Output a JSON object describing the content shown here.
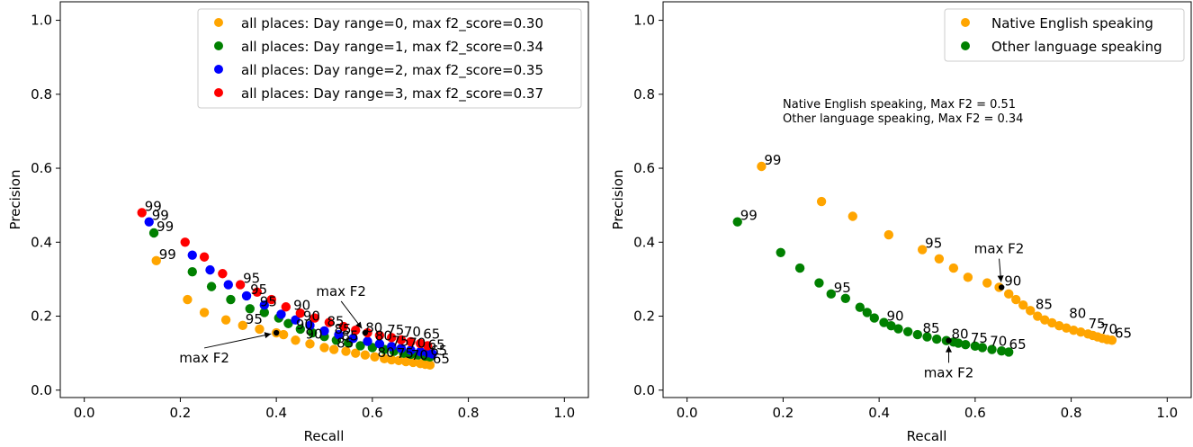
{
  "chart_data": [
    {
      "type": "scatter",
      "xlabel": "Recall",
      "ylabel": "Precision",
      "xlim": [
        -0.05,
        1.05
      ],
      "ylim": [
        -0.02,
        1.05
      ],
      "xticks": [
        "0.0",
        "0.2",
        "0.4",
        "0.6",
        "0.8",
        "1.0"
      ],
      "yticks": [
        "0.0",
        "0.2",
        "0.4",
        "0.6",
        "0.8",
        "1.0"
      ],
      "legend_position": "top-right",
      "series": [
        {
          "name": "all places: Day range=0, max f2_score=0.30",
          "color": "#ffa500",
          "x": [
            0.15,
            0.215,
            0.25,
            0.295,
            0.33,
            0.365,
            0.4,
            0.415,
            0.44,
            0.47,
            0.5,
            0.52,
            0.545,
            0.565,
            0.585,
            0.605,
            0.625,
            0.64,
            0.655,
            0.67,
            0.685,
            0.7,
            0.71,
            0.72
          ],
          "y": [
            0.35,
            0.245,
            0.21,
            0.19,
            0.175,
            0.165,
            0.155,
            0.15,
            0.135,
            0.125,
            0.115,
            0.11,
            0.105,
            0.1,
            0.095,
            0.09,
            0.085,
            0.082,
            0.08,
            0.077,
            0.075,
            0.072,
            0.07,
            0.068
          ]
        },
        {
          "name": "all places: Day range=1, max f2_score=0.34",
          "color": "#008000",
          "x": [
            0.145,
            0.225,
            0.265,
            0.305,
            0.345,
            0.375,
            0.405,
            0.425,
            0.45,
            0.475,
            0.5,
            0.525,
            0.55,
            0.575,
            0.6,
            0.625,
            0.645,
            0.665,
            0.68,
            0.695,
            0.71,
            0.72
          ],
          "y": [
            0.425,
            0.32,
            0.28,
            0.245,
            0.22,
            0.21,
            0.195,
            0.18,
            0.165,
            0.155,
            0.145,
            0.135,
            0.128,
            0.12,
            0.115,
            0.11,
            0.105,
            0.1,
            0.097,
            0.095,
            0.092,
            0.09
          ]
        },
        {
          "name": "all places: Day range=2, max f2_score=0.35",
          "color": "#0000ff",
          "x": [
            0.135,
            0.225,
            0.262,
            0.3,
            0.338,
            0.375,
            0.41,
            0.44,
            0.47,
            0.5,
            0.53,
            0.56,
            0.59,
            0.615,
            0.64,
            0.66,
            0.68,
            0.7,
            0.715,
            0.725
          ],
          "y": [
            0.455,
            0.365,
            0.325,
            0.285,
            0.255,
            0.23,
            0.205,
            0.19,
            0.175,
            0.16,
            0.15,
            0.14,
            0.132,
            0.125,
            0.118,
            0.113,
            0.108,
            0.104,
            0.101,
            0.098
          ]
        },
        {
          "name": "all places: Day range=3, max f2_score=0.37",
          "color": "#ff0000",
          "x": [
            0.12,
            0.21,
            0.25,
            0.288,
            0.325,
            0.36,
            0.39,
            0.42,
            0.45,
            0.48,
            0.51,
            0.54,
            0.565,
            0.59,
            0.615,
            0.64,
            0.66,
            0.68,
            0.7,
            0.715
          ],
          "y": [
            0.48,
            0.4,
            0.36,
            0.315,
            0.285,
            0.265,
            0.245,
            0.225,
            0.208,
            0.195,
            0.183,
            0.172,
            0.162,
            0.155,
            0.148,
            0.142,
            0.136,
            0.131,
            0.126,
            0.12
          ]
        }
      ],
      "annotations": [
        {
          "text": "99",
          "x": 0.12,
          "y": 0.48
        },
        {
          "text": "99",
          "x": 0.135,
          "y": 0.455
        },
        {
          "text": "99",
          "x": 0.145,
          "y": 0.425
        },
        {
          "text": "99",
          "x": 0.15,
          "y": 0.35
        },
        {
          "text": "95",
          "x": 0.325,
          "y": 0.285
        },
        {
          "text": "95",
          "x": 0.34,
          "y": 0.255
        },
        {
          "text": "95",
          "x": 0.36,
          "y": 0.222
        },
        {
          "text": "95",
          "x": 0.33,
          "y": 0.175
        },
        {
          "text": "90",
          "x": 0.43,
          "y": 0.212
        },
        {
          "text": "90",
          "x": 0.45,
          "y": 0.183
        },
        {
          "text": "90",
          "x": 0.435,
          "y": 0.16
        },
        {
          "text": "90",
          "x": 0.455,
          "y": 0.135
        },
        {
          "text": "85",
          "x": 0.5,
          "y": 0.168
        },
        {
          "text": "85",
          "x": 0.515,
          "y": 0.148
        },
        {
          "text": "85",
          "x": 0.53,
          "y": 0.13
        },
        {
          "text": "85",
          "x": 0.52,
          "y": 0.11
        },
        {
          "text": "80",
          "x": 0.58,
          "y": 0.152
        },
        {
          "text": "80",
          "x": 0.6,
          "y": 0.13
        },
        {
          "text": "80",
          "x": 0.605,
          "y": 0.085
        },
        {
          "text": "75",
          "x": 0.625,
          "y": 0.145
        },
        {
          "text": "75",
          "x": 0.635,
          "y": 0.115
        },
        {
          "text": "75",
          "x": 0.645,
          "y": 0.082
        },
        {
          "text": "70",
          "x": 0.66,
          "y": 0.14
        },
        {
          "text": "70",
          "x": 0.67,
          "y": 0.11
        },
        {
          "text": "70",
          "x": 0.675,
          "y": 0.077
        },
        {
          "text": "65",
          "x": 0.7,
          "y": 0.135
        },
        {
          "text": "65",
          "x": 0.71,
          "y": 0.105
        },
        {
          "text": "65",
          "x": 0.715,
          "y": 0.09
        },
        {
          "text": "65",
          "x": 0.72,
          "y": 0.068
        }
      ],
      "callouts": [
        {
          "text": "max F2",
          "point": [
            0.4,
            0.155
          ],
          "text_at": [
            0.25,
            0.075
          ]
        },
        {
          "text": "max F2",
          "point": [
            0.585,
            0.155
          ],
          "text_at": [
            0.535,
            0.255
          ]
        }
      ]
    },
    {
      "type": "scatter",
      "xlabel": "Recall",
      "ylabel": "Precision",
      "xlim": [
        -0.05,
        1.05
      ],
      "ylim": [
        -0.02,
        1.05
      ],
      "xticks": [
        "0.0",
        "0.2",
        "0.4",
        "0.6",
        "0.8",
        "1.0"
      ],
      "yticks": [
        "0.0",
        "0.2",
        "0.4",
        "0.6",
        "0.8",
        "1.0"
      ],
      "legend_position": "top-right",
      "text_box": [
        "Native English speaking, Max F2 = 0.51",
        "Other language speaking, Max F2 = 0.34"
      ],
      "series": [
        {
          "name": "Native English speaking",
          "color": "#ffa500",
          "x": [
            0.155,
            0.28,
            0.345,
            0.42,
            0.49,
            0.525,
            0.555,
            0.585,
            0.625,
            0.65,
            0.67,
            0.685,
            0.7,
            0.715,
            0.73,
            0.745,
            0.76,
            0.775,
            0.79,
            0.805,
            0.82,
            0.835,
            0.845,
            0.855,
            0.865,
            0.875,
            0.885
          ],
          "y": [
            0.605,
            0.51,
            0.47,
            0.42,
            0.38,
            0.355,
            0.33,
            0.305,
            0.29,
            0.278,
            0.26,
            0.245,
            0.23,
            0.215,
            0.2,
            0.19,
            0.182,
            0.174,
            0.168,
            0.162,
            0.157,
            0.152,
            0.148,
            0.144,
            0.14,
            0.137,
            0.135
          ]
        },
        {
          "name": "Other language speaking",
          "color": "#008000",
          "x": [
            0.105,
            0.195,
            0.235,
            0.275,
            0.3,
            0.33,
            0.36,
            0.375,
            0.39,
            0.41,
            0.425,
            0.44,
            0.46,
            0.48,
            0.5,
            0.52,
            0.54,
            0.555,
            0.565,
            0.58,
            0.6,
            0.615,
            0.635,
            0.655,
            0.67
          ],
          "y": [
            0.455,
            0.372,
            0.33,
            0.29,
            0.26,
            0.248,
            0.224,
            0.21,
            0.195,
            0.183,
            0.174,
            0.166,
            0.158,
            0.15,
            0.144,
            0.138,
            0.134,
            0.13,
            0.127,
            0.123,
            0.119,
            0.115,
            0.11,
            0.106,
            0.103
          ]
        }
      ],
      "annotations": [
        {
          "text": "99",
          "x": 0.155,
          "y": 0.605
        },
        {
          "text": "99",
          "x": 0.105,
          "y": 0.455
        },
        {
          "text": "95",
          "x": 0.49,
          "y": 0.38
        },
        {
          "text": "95",
          "x": 0.3,
          "y": 0.26
        },
        {
          "text": "90",
          "x": 0.655,
          "y": 0.278
        },
        {
          "text": "90",
          "x": 0.41,
          "y": 0.183
        },
        {
          "text": "85",
          "x": 0.72,
          "y": 0.215
        },
        {
          "text": "85",
          "x": 0.485,
          "y": 0.15
        },
        {
          "text": "80",
          "x": 0.79,
          "y": 0.19
        },
        {
          "text": "80",
          "x": 0.545,
          "y": 0.134
        },
        {
          "text": "75",
          "x": 0.585,
          "y": 0.123
        },
        {
          "text": "75",
          "x": 0.83,
          "y": 0.162
        },
        {
          "text": "70",
          "x": 0.625,
          "y": 0.115
        },
        {
          "text": "70",
          "x": 0.855,
          "y": 0.148
        },
        {
          "text": "65",
          "x": 0.665,
          "y": 0.106
        },
        {
          "text": "65",
          "x": 0.885,
          "y": 0.137
        }
      ],
      "callouts": [
        {
          "text": "max F2",
          "point": [
            0.655,
            0.278
          ],
          "text_at": [
            0.65,
            0.37
          ]
        },
        {
          "text": "max F2",
          "point": [
            0.545,
            0.134
          ],
          "text_at": [
            0.545,
            0.035
          ]
        }
      ]
    }
  ]
}
